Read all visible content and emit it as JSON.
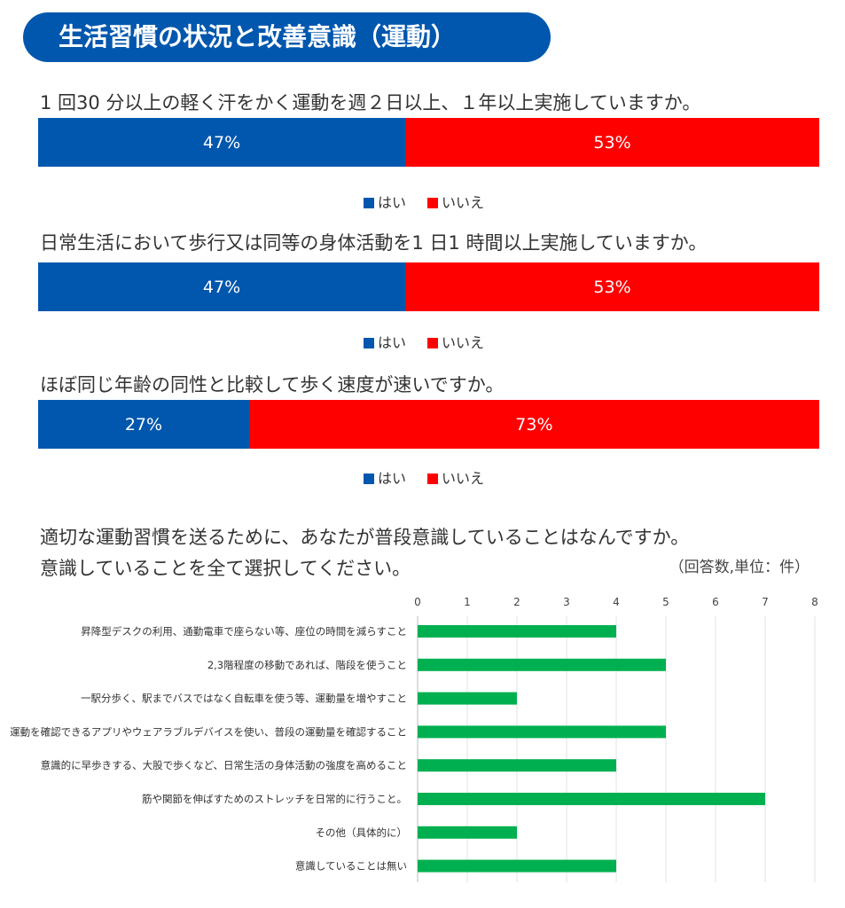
{
  "title": "生活習慣の状況と改善意識（運動）",
  "colors": {
    "yes": "#0057ad",
    "no": "#ff0000",
    "bar": "#00b050",
    "header": "#0057ad"
  },
  "questions": [
    {
      "text": "1 回30 分以上の軽く汗をかく運動を週２日以上、１年以上実施していますか。",
      "yes": 47,
      "no": 53,
      "yes_label": "47%",
      "no_label": "53%"
    },
    {
      "text": "日常生活において歩行又は同等の身体活動を1 日1 時間以上実施していますか。",
      "yes": 47,
      "no": 53,
      "yes_label": "47%",
      "no_label": "53%"
    },
    {
      "text": "ほぼ同じ年齢の同性と比較して歩く速度が速いですか。",
      "yes": 27,
      "no": 73,
      "yes_label": "27%",
      "no_label": "73%"
    }
  ],
  "legend": {
    "yes": "はい",
    "no": "いいえ"
  },
  "q4": {
    "line1": "適切な運動習慣を送るために、あなたが普段意識していることはなんですか。",
    "line2": "意識していることを全て選択してください。",
    "unit_note": "（回答数,単位：件）"
  },
  "chart_data": {
    "type": "bar",
    "orientation": "horizontal",
    "categories": [
      "昇降型デスクの利用、通勤電車で座らない等、座位の時間を減らすこと",
      "2,3階程度の移動であれば、階段を使うこと",
      "一駅分歩く、駅までバスではなく自転車を使う等、運動量を増やすこと",
      "運動を確認できるアプリやウェアラブルデバイスを使い、普段の運動量を確認すること",
      "意識的に早歩きする、大股で歩くなど、日常生活の身体活動の強度を高めること",
      "筋や関節を伸ばすためのストレッチを日常的に行うこと。",
      "その他（具体的に）",
      "意識していることは無い"
    ],
    "values": [
      4,
      5,
      2,
      5,
      4,
      7,
      2,
      4
    ],
    "xlim": [
      0,
      8
    ],
    "xticks": [
      "0",
      "1",
      "2",
      "3",
      "4",
      "5",
      "6",
      "7",
      "8"
    ],
    "grid": true
  }
}
